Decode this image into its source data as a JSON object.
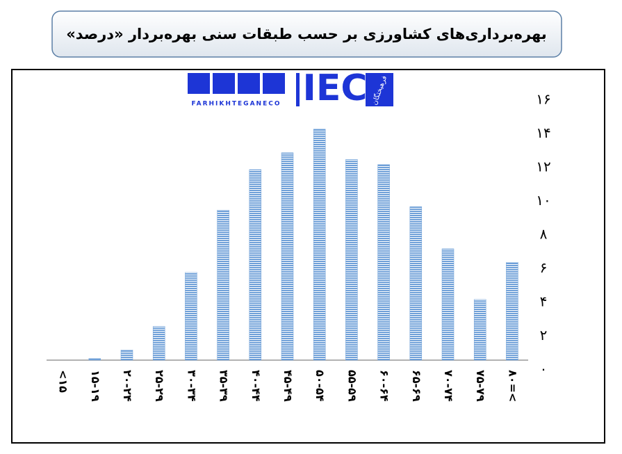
{
  "chart_data": {
    "type": "bar",
    "title": "بهره‌برداری‌های کشاورزی  بر حسب طبقات سنی بهره‌بردار «درصد»",
    "categories": [
      "<۱۵",
      "۱۵-۱۹",
      "۲۰-۲۴",
      "۲۵-۲۹",
      "۳۰-۳۴",
      "۳۵-۳۹",
      "۴۰-۴۴",
      "۴۵-۴۹",
      "۵۰-۵۴",
      "۵۵-۵۹",
      "۶۰-۶۴",
      "۶۵-۶۹",
      "۷۰-۷۴",
      "۷۵-۷۹",
      "۸۰=<"
    ],
    "values": [
      0,
      0.1,
      0.6,
      2.0,
      5.2,
      8.9,
      11.3,
      12.3,
      13.7,
      11.9,
      11.6,
      9.1,
      6.6,
      3.6,
      5.8
    ],
    "color": "#6fa0d8",
    "ylim": [
      0,
      16
    ],
    "yticks": [
      {
        "value": 0,
        "label": "۰"
      },
      {
        "value": 2,
        "label": "۲"
      },
      {
        "value": 4,
        "label": "۴"
      },
      {
        "value": 6,
        "label": "۶"
      },
      {
        "value": 8,
        "label": "۸"
      },
      {
        "value": 10,
        "label": "۱۰"
      },
      {
        "value": 12,
        "label": "۱۲"
      },
      {
        "value": 14,
        "label": "۱۴"
      },
      {
        "value": 16,
        "label": "۱۶"
      }
    ],
    "grid": false
  },
  "watermark": "FARHIKHTEGANECO",
  "logo": "IEC",
  "logo_badge": "فرهیختگان"
}
